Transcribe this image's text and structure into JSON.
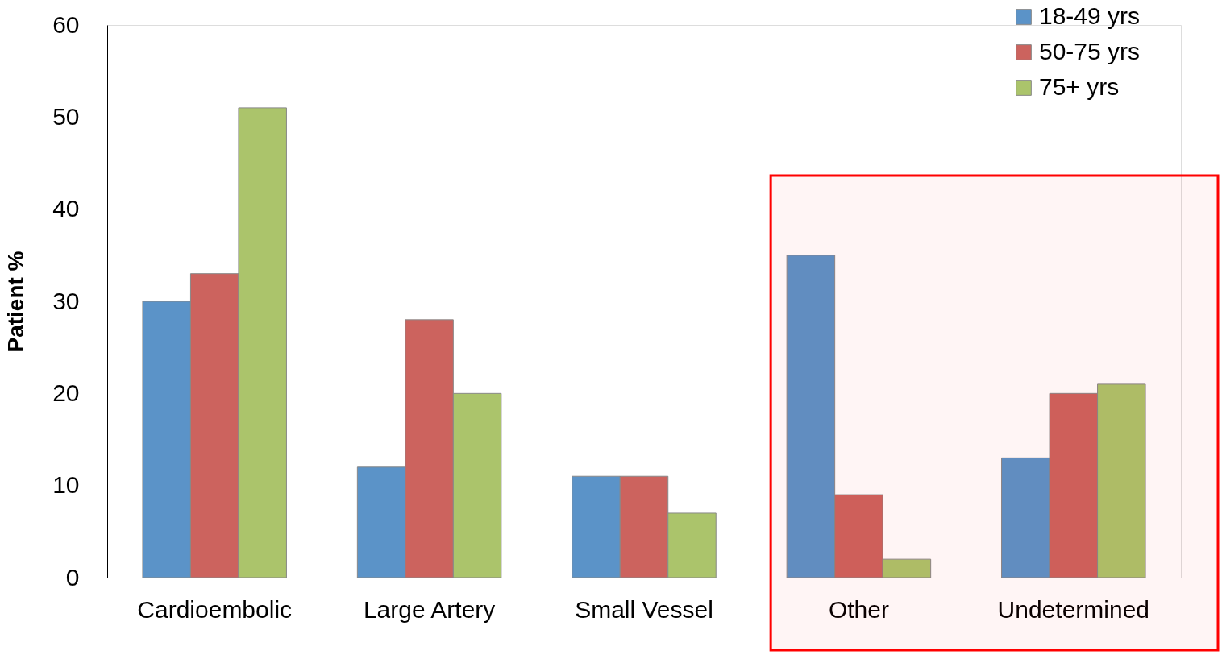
{
  "chart_data": {
    "type": "bar",
    "ylabel": "Patient %",
    "categories": [
      "Cardioembolic",
      "Large Artery",
      "Small Vessel",
      "Other",
      "Undetermined"
    ],
    "series": [
      {
        "name": "18-49 yrs",
        "color": "#5b93c8",
        "values": [
          30,
          12,
          11,
          35,
          13
        ]
      },
      {
        "name": "50-75 yrs",
        "color": "#cc635e",
        "values": [
          33,
          28,
          11,
          9,
          20
        ]
      },
      {
        "name": "75+ yrs",
        "color": "#abc46b",
        "values": [
          51,
          20,
          7,
          2,
          21
        ]
      }
    ],
    "ylim": [
      0,
      60
    ],
    "yticks": [
      0,
      10,
      20,
      30,
      40,
      50,
      60
    ],
    "grid": false,
    "legend": "top right",
    "bands": [
      {
        "axis": "x",
        "from": "Other",
        "to": "Undetermined",
        "color": "#ff0000"
      }
    ]
  }
}
